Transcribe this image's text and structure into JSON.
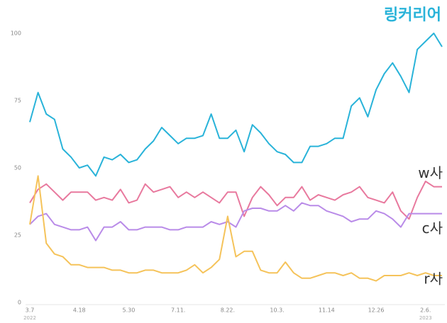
{
  "chart_data": {
    "type": "line",
    "categories": [
      "3.7",
      null,
      null,
      null,
      null,
      null,
      "4.18",
      null,
      null,
      null,
      null,
      null,
      "5.30",
      null,
      null,
      null,
      null,
      null,
      "7.11.",
      null,
      null,
      null,
      null,
      null,
      "8.22.",
      null,
      null,
      null,
      null,
      null,
      "10.3.",
      null,
      null,
      null,
      null,
      null,
      "11.14",
      null,
      null,
      null,
      null,
      null,
      "12.26",
      null,
      null,
      null,
      null,
      null,
      "2.6.",
      null,
      null
    ],
    "x_year_labels": [
      {
        "index": 0,
        "label": "2022"
      },
      {
        "index": 48,
        "label": "2023"
      }
    ],
    "series": [
      {
        "name": "링커리어",
        "color": "#29b3d9",
        "values": [
          67,
          78,
          70,
          68,
          57,
          54,
          50,
          51,
          47,
          54,
          53,
          55,
          52,
          53,
          57,
          60,
          65,
          62,
          59,
          61,
          61,
          62,
          70,
          61,
          61,
          64,
          56,
          66,
          63,
          59,
          56,
          55,
          52,
          52,
          58,
          58,
          59,
          61,
          61,
          73,
          76,
          69,
          79,
          85,
          89,
          84,
          78,
          94,
          97,
          100,
          95
        ]
      },
      {
        "name": "w사",
        "color": "#e8799e",
        "values": [
          37,
          42,
          44,
          41,
          38,
          41,
          41,
          41,
          38,
          39,
          38,
          42,
          37,
          38,
          44,
          41,
          42,
          43,
          39,
          41,
          39,
          41,
          39,
          37,
          41,
          41,
          32,
          39,
          43,
          40,
          36,
          39,
          39,
          43,
          38,
          40,
          39,
          38,
          40,
          41,
          43,
          39,
          38,
          37,
          41,
          34,
          31,
          39,
          45,
          43,
          43
        ]
      },
      {
        "name": "c사",
        "color": "#b98be8",
        "values": [
          29,
          32,
          33,
          29,
          28,
          27,
          27,
          28,
          23,
          28,
          28,
          30,
          27,
          27,
          28,
          28,
          28,
          27,
          27,
          28,
          28,
          28,
          30,
          29,
          30,
          28,
          34,
          35,
          35,
          34,
          34,
          36,
          34,
          37,
          36,
          36,
          34,
          33,
          32,
          30,
          31,
          31,
          34,
          33,
          31,
          28,
          33,
          33,
          33,
          33,
          33
        ]
      },
      {
        "name": "r사",
        "color": "#f5c35a",
        "values": [
          29,
          47,
          22,
          18,
          17,
          14,
          14,
          13,
          13,
          13,
          12,
          12,
          11,
          11,
          12,
          12,
          11,
          11,
          11,
          12,
          14,
          11,
          13,
          16,
          32,
          17,
          19,
          19,
          12,
          11,
          11,
          15,
          11,
          9,
          9,
          10,
          11,
          11,
          10,
          11,
          9,
          9,
          8,
          10,
          10,
          10,
          11,
          10,
          11,
          10,
          10
        ]
      }
    ],
    "ylim": [
      0,
      100
    ],
    "yticks": [
      0,
      25,
      50,
      75,
      100
    ]
  }
}
